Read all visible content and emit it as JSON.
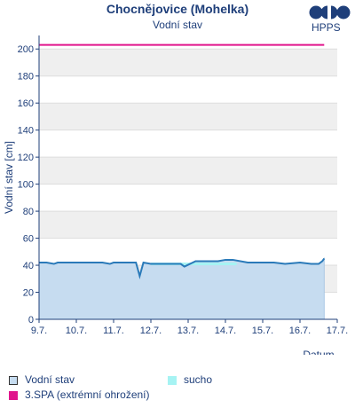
{
  "header": {
    "title": "Chocnějovice (Mohelka)",
    "subtitle": "Vodní stav",
    "logo_text": "HPPS"
  },
  "colors": {
    "water_line": "#2a7ab9",
    "water_fill": "#c6dcf0",
    "drought": "#a6f3f3",
    "spa3": "#e0158c",
    "axis": "#1f3f7a",
    "band": "#efefef"
  },
  "legend": [
    {
      "label": "Vodní stav",
      "color": "#c6dcf0",
      "border": "#333333"
    },
    {
      "label": "sucho",
      "color": "#a6f3f3",
      "border": ""
    },
    {
      "label": "3.SPA (extrémní ohrožení)",
      "color": "#e0158c",
      "border": ""
    }
  ],
  "chart_data": {
    "type": "area",
    "title": "Chocnějovice (Mohelka)",
    "subtitle": "Vodní stav",
    "xlabel": "Datum",
    "ylabel": "Vodní stav [cm]",
    "ylim": [
      0,
      210
    ],
    "yticks": [
      0,
      20,
      40,
      60,
      80,
      100,
      120,
      140,
      160,
      180,
      200
    ],
    "xlim": [
      0,
      8
    ],
    "xticks": [
      "9.7.",
      "10.7.",
      "11.7.",
      "12.7.",
      "13.7.",
      "14.7.",
      "15.7.",
      "16.7.",
      "17.7."
    ],
    "series": [
      {
        "name": "Vodní stav",
        "type": "area",
        "x": [
          0.0,
          0.2,
          0.4,
          0.5,
          0.8,
          1.0,
          1.4,
          1.7,
          1.9,
          2.0,
          2.3,
          2.6,
          2.7,
          2.8,
          3.0,
          3.3,
          3.5,
          3.8,
          3.9,
          4.2,
          4.6,
          4.8,
          5.0,
          5.2,
          5.6,
          6.0,
          6.3,
          6.6,
          7.0,
          7.3,
          7.5,
          7.6,
          7.65
        ],
        "y": [
          42,
          42,
          41,
          42,
          42,
          42,
          42,
          42,
          41,
          42,
          42,
          42,
          32,
          42,
          41,
          41,
          41,
          41,
          39,
          43,
          43,
          43,
          44,
          44,
          42,
          42,
          42,
          41,
          42,
          41,
          41,
          43,
          45
        ]
      },
      {
        "name": "sucho",
        "type": "band",
        "x": [
          3.0,
          5.3
        ],
        "y": [
          40,
          40
        ]
      },
      {
        "name": "3.SPA (extrémní ohrožení)",
        "type": "line",
        "x": [
          0.0,
          7.65
        ],
        "y": [
          203,
          203
        ]
      }
    ],
    "grid": "alternating horizontal bands",
    "legend_position": "bottom"
  }
}
